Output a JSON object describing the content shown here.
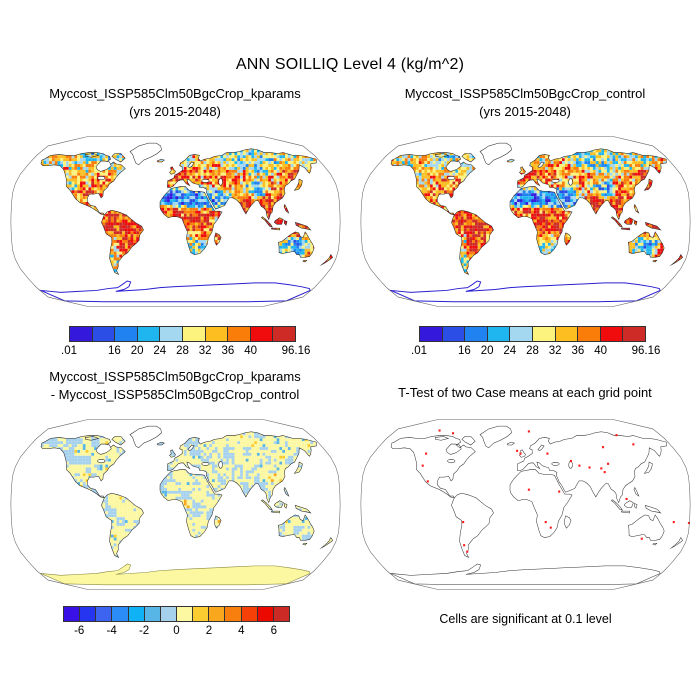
{
  "figure": {
    "title": "ANN SOILLIQ Level 4 (kg/m^2)",
    "season": "ANN",
    "variable": "SOILLIQ",
    "level": "Level 4",
    "units": "kg/m^2",
    "footnote": "Cells are significant at 0.1 level"
  },
  "panels": [
    {
      "title_line1": "Myccost_ISSP585Clm50BgcCrop_kparams",
      "title_line2": "(yrs 2015-2048)"
    },
    {
      "title_line1": "Myccost_ISSP585Clm50BgcCrop_control",
      "title_line2": "(yrs 2015-2048)"
    },
    {
      "title_line1": "Myccost_ISSP585Clm50BgcCrop_kparams",
      "title_line2": "- Myccost_ISSP585Clm50BgcCrop_control"
    },
    {
      "title_line1": "T-Test of two Case means at each grid point",
      "title_line2": ""
    }
  ],
  "chart_data": [
    {
      "type": "heatmap",
      "subtype": "global-filled-contour-map",
      "projection": "robinson",
      "title": "Myccost_ISSP585Clm50BgcCrop_kparams (yrs 2015-2048)",
      "units": "kg/m^2",
      "value_range": [
        0.01,
        96.16
      ],
      "palette": [
        "#3418dc",
        "#2a4ee6",
        "#1f82f0",
        "#1fb6f0",
        "#a4d7f0",
        "#fcf27e",
        "#fcbe20",
        "#fa7c09",
        "#f00c0c",
        "#ce2b26"
      ],
      "colorbar_ticks": [
        {
          "label": ".01",
          "at": 0
        },
        {
          "label": "16",
          "at": 2
        },
        {
          "label": "20",
          "at": 3
        },
        {
          "label": "24",
          "at": 4
        },
        {
          "label": "28",
          "at": 5
        },
        {
          "label": "32",
          "at": 6
        },
        {
          "label": "36",
          "at": 7
        },
        {
          "label": "40",
          "at": 8
        },
        {
          "label": "96.16",
          "at": 10
        }
      ]
    },
    {
      "type": "heatmap",
      "subtype": "global-filled-contour-map",
      "projection": "robinson",
      "title": "Myccost_ISSP585Clm50BgcCrop_control (yrs 2015-2048)",
      "units": "kg/m^2",
      "value_range": [
        0.01,
        96.16
      ],
      "palette": [
        "#3418dc",
        "#2a4ee6",
        "#1f82f0",
        "#1fb6f0",
        "#a4d7f0",
        "#fcf27e",
        "#fcbe20",
        "#fa7c09",
        "#f00c0c",
        "#ce2b26"
      ],
      "colorbar_ticks": [
        {
          "label": ".01",
          "at": 0
        },
        {
          "label": "16",
          "at": 2
        },
        {
          "label": "20",
          "at": 3
        },
        {
          "label": "24",
          "at": 4
        },
        {
          "label": "28",
          "at": 5
        },
        {
          "label": "32",
          "at": 6
        },
        {
          "label": "36",
          "at": 7
        },
        {
          "label": "40",
          "at": 8
        },
        {
          "label": "96.16",
          "at": 10
        }
      ]
    },
    {
      "type": "heatmap",
      "subtype": "global-difference-map",
      "projection": "robinson",
      "title": "Myccost_ISSP585Clm50BgcCrop_kparams - Myccost_ISSP585Clm50BgcCrop_control",
      "units": "kg/m^2",
      "palette": [
        "#3910e6",
        "#2636f0",
        "#3c64f0",
        "#2b8cf8",
        "#0eb2f5",
        "#58b6e6",
        "#a6d1ed",
        "#fcf7a1",
        "#fbcd30",
        "#f9a71d",
        "#f87f0e",
        "#f54008",
        "#ec0a00",
        "#cc2a24"
      ],
      "colorbar_ticks": [
        {
          "label": "-6",
          "at": 1
        },
        {
          "label": "-4",
          "at": 3
        },
        {
          "label": "-2",
          "at": 5
        },
        {
          "label": "0",
          "at": 7
        },
        {
          "label": "2",
          "at": 9
        },
        {
          "label": "4",
          "at": 11
        },
        {
          "label": "6",
          "at": 13
        }
      ]
    },
    {
      "type": "scatter",
      "subtype": "significance-map",
      "projection": "robinson",
      "title": "T-Test of two Case means at each grid point",
      "caption": "Cells are significant at 0.1 level",
      "significance_level": "0.1",
      "dot_color": "#ff1a1a",
      "dots": [
        [
          0.205,
          0.225
        ],
        [
          0.195,
          0.29
        ],
        [
          0.21,
          0.375
        ],
        [
          0.245,
          0.1
        ],
        [
          0.285,
          0.115
        ],
        [
          0.51,
          0.105
        ],
        [
          0.475,
          0.21
        ],
        [
          0.485,
          0.225
        ],
        [
          0.565,
          0.225
        ],
        [
          0.635,
          0.265
        ],
        [
          0.66,
          0.29
        ],
        [
          0.69,
          0.3
        ],
        [
          0.725,
          0.305
        ],
        [
          0.745,
          0.28
        ],
        [
          0.735,
          0.325
        ],
        [
          0.77,
          0.125
        ],
        [
          0.82,
          0.175
        ],
        [
          0.73,
          0.19
        ],
        [
          0.51,
          0.42
        ],
        [
          0.6,
          0.43
        ],
        [
          0.56,
          0.595
        ],
        [
          0.575,
          0.625
        ],
        [
          0.315,
          0.595
        ],
        [
          0.318,
          0.72
        ],
        [
          0.327,
          0.755
        ],
        [
          0.8,
          0.47
        ],
        [
          0.845,
          0.685
        ],
        [
          0.94,
          0.595
        ],
        [
          0.985,
          0.6
        ]
      ]
    }
  ]
}
